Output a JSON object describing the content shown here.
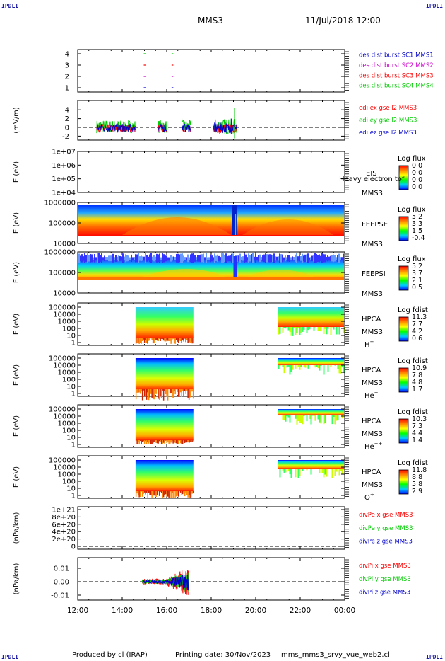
{
  "header": {
    "corner_label": "IPDLI",
    "spacecraft": "MMS3",
    "datetime": "11/Jul/2018 12:00"
  },
  "footer": {
    "produced": "Produced by cl (IRAP)",
    "printing": "Printing date: 30/Nov/2023",
    "script": "mms_mms3_srvy_vue_web2.cl"
  },
  "colors": {
    "red": "#ff0000",
    "green": "#00cc00",
    "blue": "#0000cc",
    "magenta": "#cc00cc",
    "black": "#000000"
  },
  "chart_data": {
    "type": "multi-panel time series / spectrogram",
    "x_ticks": [
      "12:00",
      "14:00",
      "16:00",
      "18:00",
      "20:00",
      "22:00",
      "00:00"
    ],
    "panels": [
      {
        "id": "burst",
        "type": "scatter",
        "ylabel": "",
        "yticks": [
          "4",
          "3",
          "2",
          "1"
        ],
        "legend": [
          {
            "label": "des dist burst SC1 MMS1",
            "color": "#0000cc"
          },
          {
            "label": "des dist burst SC2 MMS2",
            "color": "#cc00cc"
          },
          {
            "label": "des dist burst SC3 MMS3",
            "color": "#ff0000"
          },
          {
            "label": "des dist burst SC4 MMS4",
            "color": "#00cc00"
          }
        ],
        "burst_times": [
          "15:00",
          "16:15"
        ]
      },
      {
        "id": "edi",
        "type": "line",
        "ylabel": "(mV/m)",
        "yticks": [
          "4",
          "2",
          "0",
          "-2"
        ],
        "legend": [
          {
            "label": "edi ex gse l2 MMS3",
            "color": "#ff0000"
          },
          {
            "label": "edi ey gse l2 MMS3",
            "color": "#00cc00"
          },
          {
            "label": "edi ez gse l2 MMS3",
            "color": "#0000cc"
          }
        ]
      },
      {
        "id": "eis",
        "type": "heatmap",
        "ylabel": "E (eV)",
        "yticks": [
          "1e+07",
          "1e+06",
          "1e+05",
          "1e+04"
        ],
        "instrument": "EIS",
        "spacecraft": "MMS3",
        "overlay": "Heavy electron tof",
        "colorbar_title": "Log flux",
        "colorbar_ticks": [
          "0.0",
          "0.0",
          "0.0",
          "0.0"
        ]
      },
      {
        "id": "feepse",
        "type": "heatmap",
        "ylabel": "E (eV)",
        "yticks": [
          "1000000",
          "100000",
          "10000"
        ],
        "instrument": "FEEPSE",
        "spacecraft": "MMS3",
        "colorbar_title": "Log flux",
        "colorbar_ticks": [
          "5.2",
          "3.3",
          "1.5",
          "-0.4"
        ]
      },
      {
        "id": "feepsi",
        "type": "heatmap",
        "ylabel": "E (eV)",
        "yticks": [
          "1000000",
          "100000",
          "10000"
        ],
        "instrument": "FEEPSI",
        "spacecraft": "MMS3",
        "colorbar_title": "Log flux",
        "colorbar_ticks": [
          "5.2",
          "3.7",
          "2.1",
          "0.5"
        ]
      },
      {
        "id": "hpca_h",
        "type": "heatmap",
        "ylabel": "E (eV)",
        "yticks": [
          "100000",
          "10000",
          "1000",
          "100",
          "10",
          "1"
        ],
        "instrument": "HPCA",
        "spacecraft": "MMS3",
        "species": "H",
        "charge": "+",
        "colorbar_title": "Log fdist",
        "colorbar_ticks": [
          "11.3",
          "7.7",
          "4.2",
          "0.6"
        ]
      },
      {
        "id": "hpca_he",
        "type": "heatmap",
        "ylabel": "E (eV)",
        "yticks": [
          "100000",
          "10000",
          "1000",
          "100",
          "10",
          "1"
        ],
        "instrument": "HPCA",
        "spacecraft": "MMS3",
        "species": "He",
        "charge": "+",
        "colorbar_title": "Log fdist",
        "colorbar_ticks": [
          "10.9",
          "7.8",
          "4.8",
          "1.7"
        ]
      },
      {
        "id": "hpca_hepp",
        "type": "heatmap",
        "ylabel": "E (eV)",
        "yticks": [
          "100000",
          "10000",
          "1000",
          "100",
          "10",
          "1"
        ],
        "instrument": "HPCA",
        "spacecraft": "MMS3",
        "species": "He",
        "charge": "++",
        "colorbar_title": "Log fdist",
        "colorbar_ticks": [
          "10.3",
          "7.3",
          "4.4",
          "1.4"
        ]
      },
      {
        "id": "hpca_o",
        "type": "heatmap",
        "ylabel": "E (eV)",
        "yticks": [
          "100000",
          "10000",
          "1000",
          "100",
          "10",
          "1"
        ],
        "instrument": "HPCA",
        "spacecraft": "MMS3",
        "species": "O",
        "charge": "+",
        "colorbar_title": "Log fdist",
        "colorbar_ticks": [
          "11.8",
          "8.8",
          "5.8",
          "2.9"
        ]
      },
      {
        "id": "divpe",
        "type": "line",
        "ylabel": "(nPa/km)",
        "yticks": [
          "1e+21",
          "8e+20",
          "6e+20",
          "4e+20",
          "2e+20",
          "0"
        ],
        "legend": [
          {
            "label": "divPe x gse MMS3",
            "color": "#ff0000"
          },
          {
            "label": "divPe y gse MMS3",
            "color": "#00cc00"
          },
          {
            "label": "divPe z gse MMS3",
            "color": "#0000cc"
          }
        ]
      },
      {
        "id": "divpi",
        "type": "line",
        "ylabel": "(nPa/km)",
        "yticks": [
          "0.01",
          "0.00",
          "-0.01"
        ],
        "legend": [
          {
            "label": "divPi x gse MMS3",
            "color": "#ff0000"
          },
          {
            "label": "divPi y gse MMS3",
            "color": "#00cc00"
          },
          {
            "label": "divPi z gse MMS3",
            "color": "#0000cc"
          }
        ]
      }
    ]
  }
}
